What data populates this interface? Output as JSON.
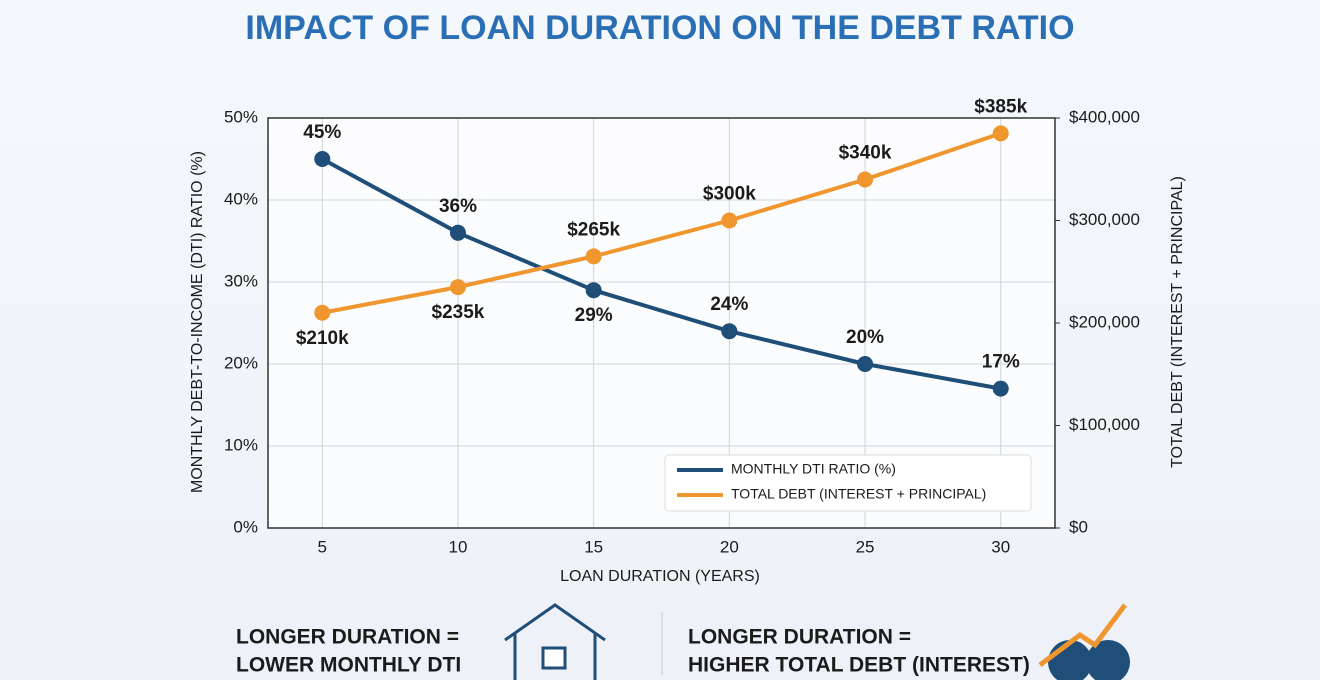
{
  "chart_data": {
    "type": "line",
    "title": "IMPACT OF LOAN DURATION ON THE DEBT RATIO",
    "x_label": "LOAN DURATION (YEARS)",
    "y_label": "MONTHLY DEBT-TO-INCOME (DTI) RATIO (%)",
    "y2_label": "TOTAL DEBT (INTEREST + PRINCIPAL)",
    "x": [
      5,
      10,
      15,
      20,
      25,
      30
    ],
    "xlim": [
      3,
      32
    ],
    "xticks": [
      5,
      10,
      15,
      20,
      25,
      30
    ],
    "ylim": [
      0,
      50
    ],
    "yticks": [
      {
        "value": 0,
        "label": "0%"
      },
      {
        "value": 10,
        "label": "10%"
      },
      {
        "value": 20,
        "label": "20%"
      },
      {
        "value": 30,
        "label": "30%"
      },
      {
        "value": 40,
        "label": "40%"
      },
      {
        "value": 50,
        "label": "50%"
      }
    ],
    "y2lim": [
      0,
      400000
    ],
    "y2ticks": [
      {
        "value": 0,
        "label": "$0"
      },
      {
        "value": 100000,
        "label": "$100,000"
      },
      {
        "value": 200000,
        "label": "$200,000"
      },
      {
        "value": 300000,
        "label": "$300,000"
      },
      {
        "value": 400000,
        "label": "$400,000"
      }
    ],
    "grid": true,
    "legend": "lower right",
    "series": [
      {
        "name": "MONTHLY DTI RATIO (%)",
        "color": "#1f4e79",
        "values": [
          45,
          36,
          29,
          24,
          20,
          17
        ],
        "value_labels": [
          "45%",
          "36%",
          "29%",
          "24%",
          "20%",
          "17%"
        ]
      },
      {
        "name": "TOTAL DEBT (INTEREST + PRINCIPAL)",
        "color": "#f0962e",
        "axis": "y2",
        "values": [
          210000,
          235000,
          265000,
          300000,
          340000,
          385000
        ],
        "value_labels": [
          "$210k",
          "$235k",
          "$265k",
          "$300k",
          "$340k",
          "$385k"
        ]
      }
    ],
    "annotations": [
      [
        "LONGER DURATION =",
        "LOWER MONTHLY DTI"
      ],
      [
        "LONGER DURATION =",
        "HIGHER TOTAL DEBT (INTEREST)"
      ]
    ]
  }
}
